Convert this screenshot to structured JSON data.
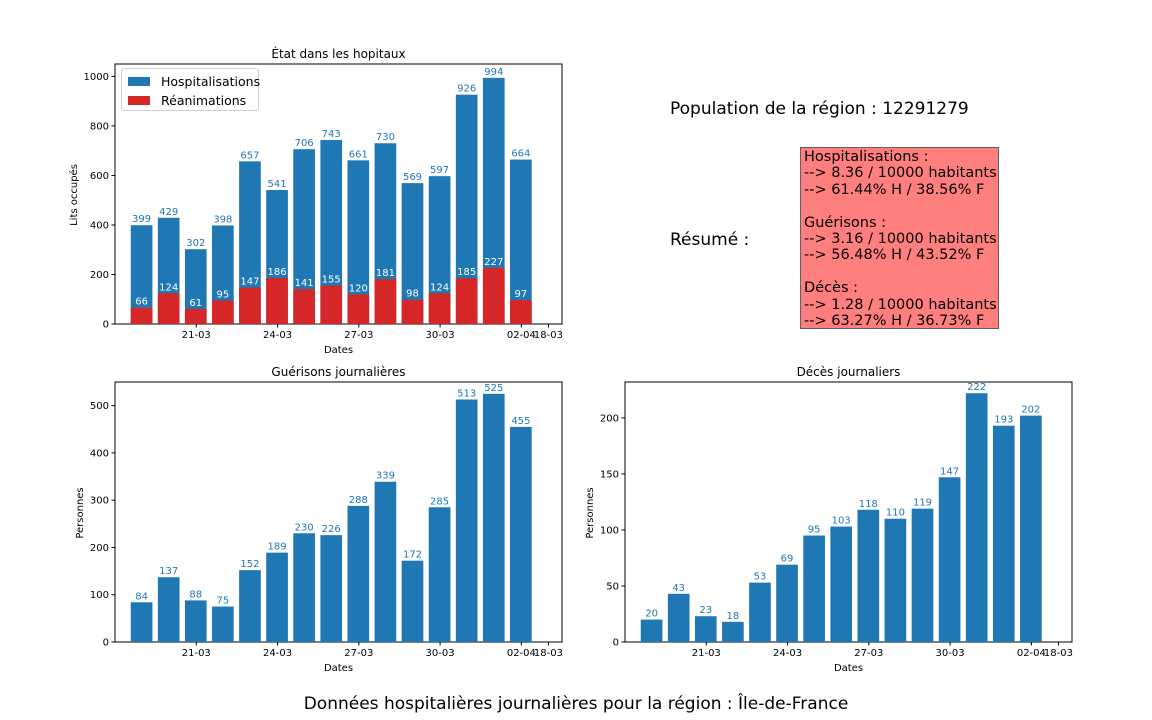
{
  "colors": {
    "hosp": "#1f77b4",
    "rea": "#d62728",
    "summary_bg": "#ff7f7f"
  },
  "x_ticks": [
    "21-03",
    "24-03",
    "27-03",
    "30-03",
    "02-04",
    "18-03"
  ],
  "population": "Population de la région : 12291279",
  "resume": {
    "label": "Résumé :",
    "hosp_title": "Hospitalisations :",
    "hosp_rate": "--> 8.36 / 10000 habitants",
    "hosp_split": "--> 61.44% H / 38.56% F",
    "guer_title": "Guérisons :",
    "guer_rate": "--> 3.16 / 10000 habitants",
    "guer_split": "--> 56.48% H / 43.52% F",
    "deces_title": "Décès :",
    "deces_rate": "--> 1.28 / 10000 habitants",
    "deces_split": "--> 63.27% H / 36.73% F"
  },
  "footer": "Données hospitalières journalières pour la région : Île-de-France",
  "chart_data": [
    {
      "type": "bar",
      "title": "État dans les hopitaux",
      "xlabel": "Dates",
      "ylabel": "Lits occupés",
      "ylim": [
        0,
        1050
      ],
      "yticks": [
        0,
        200,
        400,
        600,
        800,
        1000
      ],
      "legend": "top-left",
      "series": [
        {
          "name": "Hospitalisations",
          "values": [
            399,
            429,
            302,
            398,
            657,
            541,
            706,
            743,
            661,
            730,
            569,
            597,
            926,
            994,
            664
          ]
        },
        {
          "name": "Réanimations",
          "values": [
            66,
            124,
            61,
            95,
            147,
            186,
            141,
            155,
            120,
            181,
            98,
            124,
            185,
            227,
            97
          ]
        }
      ]
    },
    {
      "type": "bar",
      "title": "Guérisons journalières",
      "xlabel": "Dates",
      "ylabel": "Personnes",
      "ylim": [
        0,
        550
      ],
      "yticks": [
        0,
        100,
        200,
        300,
        400,
        500
      ],
      "values": [
        84,
        137,
        88,
        75,
        152,
        189,
        230,
        226,
        288,
        339,
        172,
        285,
        513,
        525,
        455
      ]
    },
    {
      "type": "bar",
      "title": "Décès journaliers",
      "xlabel": "Dates",
      "ylabel": "Personnes",
      "ylim": [
        0,
        232
      ],
      "yticks": [
        0,
        50,
        100,
        150,
        200
      ],
      "values": [
        20,
        43,
        23,
        18,
        53,
        69,
        95,
        103,
        118,
        110,
        119,
        147,
        222,
        193,
        202
      ]
    }
  ]
}
